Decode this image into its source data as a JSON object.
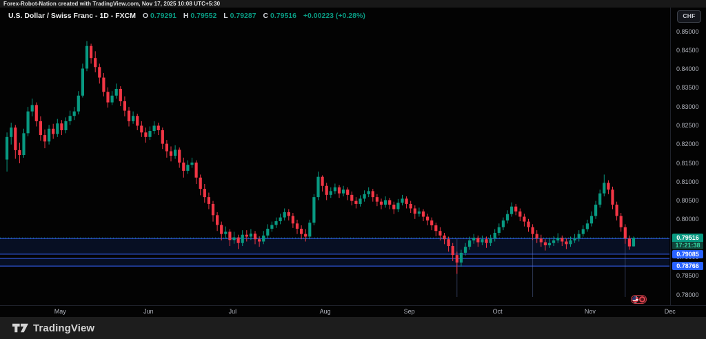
{
  "attribution": "Forex-Robot-Nation created with TradingView.com, Nov 17, 2025 10:08 UTC+5:30",
  "legend": {
    "symbol_title": "U.S. Dollar / Swiss Franc - 1D - FXCM",
    "o_letter": "O",
    "o_value": "0.79291",
    "h_letter": "H",
    "h_value": "0.79552",
    "l_letter": "L",
    "l_value": "0.79287",
    "c_letter": "C",
    "c_value": "0.79516",
    "change": "+0.00223 (+0.28%)"
  },
  "currency_button_label": "CHF",
  "footer": {
    "brand": "TradingView"
  },
  "chart_data": {
    "type": "candlestick",
    "title": "U.S. Dollar / Swiss Franc",
    "interval": "1D",
    "exchange": "FXCM",
    "quote_currency": "CHF",
    "ylim": [
      0.7772,
      0.8526
    ],
    "grid": false,
    "y_tick_labels": [
      "0.85000",
      "0.84500",
      "0.84000",
      "0.83500",
      "0.83000",
      "0.82500",
      "0.82000",
      "0.81500",
      "0.81000",
      "0.80500",
      "0.80000",
      "0.79500",
      "0.79000",
      "0.78500",
      "0.78000"
    ],
    "y_tick_values": [
      0.85,
      0.845,
      0.84,
      0.835,
      0.83,
      0.825,
      0.82,
      0.815,
      0.81,
      0.805,
      0.8,
      0.795,
      0.79,
      0.785,
      0.78
    ],
    "x_tick_labels": [
      {
        "label": "May",
        "index": 13
      },
      {
        "label": "Jun",
        "index": 34
      },
      {
        "label": "Jul",
        "index": 54
      },
      {
        "label": "Aug",
        "index": 76
      },
      {
        "label": "Sep",
        "index": 96
      },
      {
        "label": "Oct",
        "index": 117
      },
      {
        "label": "Nov",
        "index": 139
      },
      {
        "label": "Dec",
        "index": 158
      }
    ],
    "last": {
      "price": 0.79516,
      "price_label": "0.79516",
      "countdown": "17:21:38"
    },
    "zones": [
      {
        "top": 0.795,
        "bottom": 0.79085,
        "bottom_label": "0.79085"
      },
      {
        "top": 0.7897,
        "bottom": 0.78766,
        "bottom_label": "0.78766"
      }
    ],
    "vertical_marks_at_index": [
      107,
      125,
      147
    ],
    "event_badge": {
      "country_flag": "US",
      "kind": "economic-event"
    },
    "colors": {
      "up": "#089981",
      "down": "#f23645",
      "zone_fill": "rgba(41,98,255,0.13)",
      "zone_border": "#2a4bc0",
      "level_label_bg": "#2962ff",
      "last_label_bg": "#089981",
      "countdown_bg": "#11443a",
      "countdown_text": "#35d8a4"
    },
    "candles": [
      [
        0.816,
        0.8232,
        0.8128,
        0.822
      ],
      [
        0.822,
        0.8258,
        0.82,
        0.8245
      ],
      [
        0.8245,
        0.8252,
        0.8162,
        0.8185
      ],
      [
        0.8185,
        0.8205,
        0.815,
        0.8172
      ],
      [
        0.8172,
        0.8242,
        0.8165,
        0.823
      ],
      [
        0.823,
        0.83,
        0.8222,
        0.8288
      ],
      [
        0.8288,
        0.8322,
        0.8275,
        0.8305
      ],
      [
        0.8305,
        0.8312,
        0.8248,
        0.8262
      ],
      [
        0.8262,
        0.8275,
        0.821,
        0.8225
      ],
      [
        0.8225,
        0.824,
        0.819,
        0.8208
      ],
      [
        0.8208,
        0.8252,
        0.82,
        0.8242
      ],
      [
        0.8242,
        0.8255,
        0.8215,
        0.8228
      ],
      [
        0.8228,
        0.8268,
        0.822,
        0.8256
      ],
      [
        0.8256,
        0.8265,
        0.8225,
        0.8238
      ],
      [
        0.8238,
        0.8272,
        0.823,
        0.8262
      ],
      [
        0.8262,
        0.829,
        0.8252,
        0.8276
      ],
      [
        0.8276,
        0.83,
        0.8265,
        0.8288
      ],
      [
        0.8288,
        0.8342,
        0.828,
        0.833
      ],
      [
        0.833,
        0.8415,
        0.8325,
        0.8402
      ],
      [
        0.8402,
        0.8475,
        0.8395,
        0.8462
      ],
      [
        0.8462,
        0.8468,
        0.8415,
        0.843
      ],
      [
        0.843,
        0.8448,
        0.8392,
        0.8406
      ],
      [
        0.8406,
        0.8415,
        0.8362,
        0.8378
      ],
      [
        0.8378,
        0.839,
        0.8328,
        0.834
      ],
      [
        0.834,
        0.8352,
        0.8298,
        0.8312
      ],
      [
        0.8312,
        0.8342,
        0.8305,
        0.833
      ],
      [
        0.833,
        0.8362,
        0.8322,
        0.8348
      ],
      [
        0.8348,
        0.8355,
        0.8302,
        0.8315
      ],
      [
        0.8315,
        0.8328,
        0.8275,
        0.829
      ],
      [
        0.829,
        0.83,
        0.8248,
        0.8262
      ],
      [
        0.8262,
        0.8288,
        0.8255,
        0.8276
      ],
      [
        0.8276,
        0.8282,
        0.8238,
        0.825
      ],
      [
        0.825,
        0.8262,
        0.822,
        0.8232
      ],
      [
        0.8232,
        0.8245,
        0.8205,
        0.822
      ],
      [
        0.822,
        0.8248,
        0.8212,
        0.8236
      ],
      [
        0.8236,
        0.8262,
        0.8228,
        0.825
      ],
      [
        0.825,
        0.8258,
        0.8225,
        0.8238
      ],
      [
        0.8238,
        0.8245,
        0.8188,
        0.8202
      ],
      [
        0.8202,
        0.8212,
        0.8165,
        0.8182
      ],
      [
        0.8182,
        0.8195,
        0.8155,
        0.817
      ],
      [
        0.817,
        0.8198,
        0.8162,
        0.8186
      ],
      [
        0.8186,
        0.8192,
        0.8138,
        0.8152
      ],
      [
        0.8152,
        0.8165,
        0.8112,
        0.813
      ],
      [
        0.813,
        0.8158,
        0.8122,
        0.8146
      ],
      [
        0.8146,
        0.8165,
        0.8138,
        0.8152
      ],
      [
        0.8152,
        0.8158,
        0.8095,
        0.8112
      ],
      [
        0.8112,
        0.812,
        0.8065,
        0.8082
      ],
      [
        0.8082,
        0.8095,
        0.8045,
        0.806
      ],
      [
        0.806,
        0.8072,
        0.8028,
        0.8042
      ],
      [
        0.8042,
        0.805,
        0.7995,
        0.8012
      ],
      [
        0.8012,
        0.802,
        0.797,
        0.7986
      ],
      [
        0.7986,
        0.7995,
        0.7945,
        0.7962
      ],
      [
        0.7962,
        0.7982,
        0.795,
        0.7968
      ],
      [
        0.7968,
        0.7975,
        0.793,
        0.7946
      ],
      [
        0.7946,
        0.7968,
        0.7936,
        0.7953
      ],
      [
        0.7953,
        0.796,
        0.7922,
        0.7938
      ],
      [
        0.7938,
        0.7972,
        0.793,
        0.796
      ],
      [
        0.796,
        0.7972,
        0.7942,
        0.7955
      ],
      [
        0.7955,
        0.7975,
        0.7946,
        0.7963
      ],
      [
        0.7963,
        0.797,
        0.7935,
        0.7948
      ],
      [
        0.7948,
        0.7956,
        0.7928,
        0.7942
      ],
      [
        0.7942,
        0.797,
        0.7935,
        0.7958
      ],
      [
        0.7958,
        0.7988,
        0.795,
        0.7976
      ],
      [
        0.7976,
        0.7995,
        0.7968,
        0.7986
      ],
      [
        0.7986,
        0.8006,
        0.7978,
        0.7996
      ],
      [
        0.7996,
        0.8016,
        0.7988,
        0.8006
      ],
      [
        0.8006,
        0.803,
        0.7998,
        0.802
      ],
      [
        0.802,
        0.8028,
        0.7998,
        0.801
      ],
      [
        0.801,
        0.8018,
        0.7978,
        0.799
      ],
      [
        0.799,
        0.8,
        0.7962,
        0.7976
      ],
      [
        0.7976,
        0.7985,
        0.7948,
        0.7962
      ],
      [
        0.7962,
        0.7975,
        0.7942,
        0.7955
      ],
      [
        0.7955,
        0.8,
        0.7948,
        0.7992
      ],
      [
        0.7992,
        0.8068,
        0.7985,
        0.806
      ],
      [
        0.806,
        0.8128,
        0.8052,
        0.8114
      ],
      [
        0.8114,
        0.8118,
        0.8075,
        0.809
      ],
      [
        0.809,
        0.8098,
        0.8052,
        0.8066
      ],
      [
        0.8066,
        0.8086,
        0.8058,
        0.8076
      ],
      [
        0.8076,
        0.8096,
        0.8068,
        0.8086
      ],
      [
        0.8086,
        0.8092,
        0.8058,
        0.807
      ],
      [
        0.807,
        0.809,
        0.8062,
        0.808
      ],
      [
        0.808,
        0.8086,
        0.8052,
        0.8066
      ],
      [
        0.8066,
        0.8075,
        0.8038,
        0.805
      ],
      [
        0.805,
        0.806,
        0.803,
        0.8042
      ],
      [
        0.8042,
        0.8065,
        0.8035,
        0.8056
      ],
      [
        0.8056,
        0.8078,
        0.8048,
        0.8068
      ],
      [
        0.8068,
        0.8086,
        0.806,
        0.8076
      ],
      [
        0.8076,
        0.8082,
        0.8048,
        0.806
      ],
      [
        0.806,
        0.8068,
        0.8036,
        0.8048
      ],
      [
        0.8048,
        0.8056,
        0.8028,
        0.804
      ],
      [
        0.804,
        0.8062,
        0.8032,
        0.8052
      ],
      [
        0.8052,
        0.8058,
        0.8028,
        0.804
      ],
      [
        0.804,
        0.8048,
        0.8015,
        0.8028
      ],
      [
        0.8028,
        0.8055,
        0.802,
        0.8045
      ],
      [
        0.8045,
        0.8066,
        0.8038,
        0.8056
      ],
      [
        0.8056,
        0.8062,
        0.803,
        0.8042
      ],
      [
        0.8042,
        0.805,
        0.8018,
        0.803
      ],
      [
        0.803,
        0.8038,
        0.8002,
        0.8016
      ],
      [
        0.8016,
        0.8032,
        0.8008,
        0.8022
      ],
      [
        0.8022,
        0.8028,
        0.7996,
        0.8008
      ],
      [
        0.8008,
        0.8016,
        0.7985,
        0.7998
      ],
      [
        0.7998,
        0.8006,
        0.7972,
        0.7985
      ],
      [
        0.7985,
        0.7992,
        0.7956,
        0.797
      ],
      [
        0.797,
        0.798,
        0.7945,
        0.7958
      ],
      [
        0.7958,
        0.7965,
        0.7935,
        0.7948
      ],
      [
        0.7948,
        0.7955,
        0.7915,
        0.793
      ],
      [
        0.793,
        0.7938,
        0.789,
        0.7906
      ],
      [
        0.7906,
        0.7915,
        0.7856,
        0.7886
      ],
      [
        0.7886,
        0.792,
        0.7875,
        0.7912
      ],
      [
        0.7912,
        0.7938,
        0.7905,
        0.7928
      ],
      [
        0.7928,
        0.7955,
        0.792,
        0.7945
      ],
      [
        0.7945,
        0.7962,
        0.7936,
        0.7952
      ],
      [
        0.7952,
        0.7958,
        0.7928,
        0.794
      ],
      [
        0.794,
        0.7958,
        0.7932,
        0.7948
      ],
      [
        0.7948,
        0.7955,
        0.7925,
        0.7938
      ],
      [
        0.7938,
        0.796,
        0.793,
        0.795
      ],
      [
        0.795,
        0.7975,
        0.7942,
        0.7965
      ],
      [
        0.7965,
        0.799,
        0.7958,
        0.798
      ],
      [
        0.798,
        0.8006,
        0.7972,
        0.7998
      ],
      [
        0.7998,
        0.8025,
        0.799,
        0.8015
      ],
      [
        0.8015,
        0.8046,
        0.8008,
        0.8035
      ],
      [
        0.8035,
        0.8042,
        0.8012,
        0.8022
      ],
      [
        0.8022,
        0.803,
        0.7996,
        0.8008
      ],
      [
        0.8008,
        0.8016,
        0.7982,
        0.7995
      ],
      [
        0.7995,
        0.8002,
        0.7968,
        0.798
      ],
      [
        0.798,
        0.7988,
        0.7946,
        0.7962
      ],
      [
        0.7962,
        0.7972,
        0.7938,
        0.795
      ],
      [
        0.795,
        0.796,
        0.7928,
        0.794
      ],
      [
        0.794,
        0.7948,
        0.7918,
        0.7932
      ],
      [
        0.7932,
        0.7952,
        0.7925,
        0.7938
      ],
      [
        0.7938,
        0.7956,
        0.793,
        0.7945
      ],
      [
        0.7945,
        0.7964,
        0.7938,
        0.7952
      ],
      [
        0.7952,
        0.7958,
        0.793,
        0.7942
      ],
      [
        0.7942,
        0.795,
        0.7922,
        0.7935
      ],
      [
        0.7935,
        0.7955,
        0.7928,
        0.7945
      ],
      [
        0.7945,
        0.7962,
        0.7938,
        0.795
      ],
      [
        0.795,
        0.7972,
        0.7942,
        0.7962
      ],
      [
        0.7962,
        0.7985,
        0.7955,
        0.7975
      ],
      [
        0.7975,
        0.8,
        0.7968,
        0.799
      ],
      [
        0.799,
        0.8022,
        0.7982,
        0.801
      ],
      [
        0.801,
        0.805,
        0.8002,
        0.804
      ],
      [
        0.804,
        0.808,
        0.8032,
        0.807
      ],
      [
        0.807,
        0.812,
        0.8062,
        0.8098
      ],
      [
        0.8098,
        0.8105,
        0.8068,
        0.808
      ],
      [
        0.808,
        0.8088,
        0.8028,
        0.804
      ],
      [
        0.804,
        0.8048,
        0.7998,
        0.801
      ],
      [
        0.801,
        0.8018,
        0.7968,
        0.798
      ],
      [
        0.798,
        0.7988,
        0.7936,
        0.795
      ],
      [
        0.795,
        0.7958,
        0.792,
        0.7929
      ],
      [
        0.79291,
        0.79552,
        0.79287,
        0.79516
      ]
    ]
  }
}
